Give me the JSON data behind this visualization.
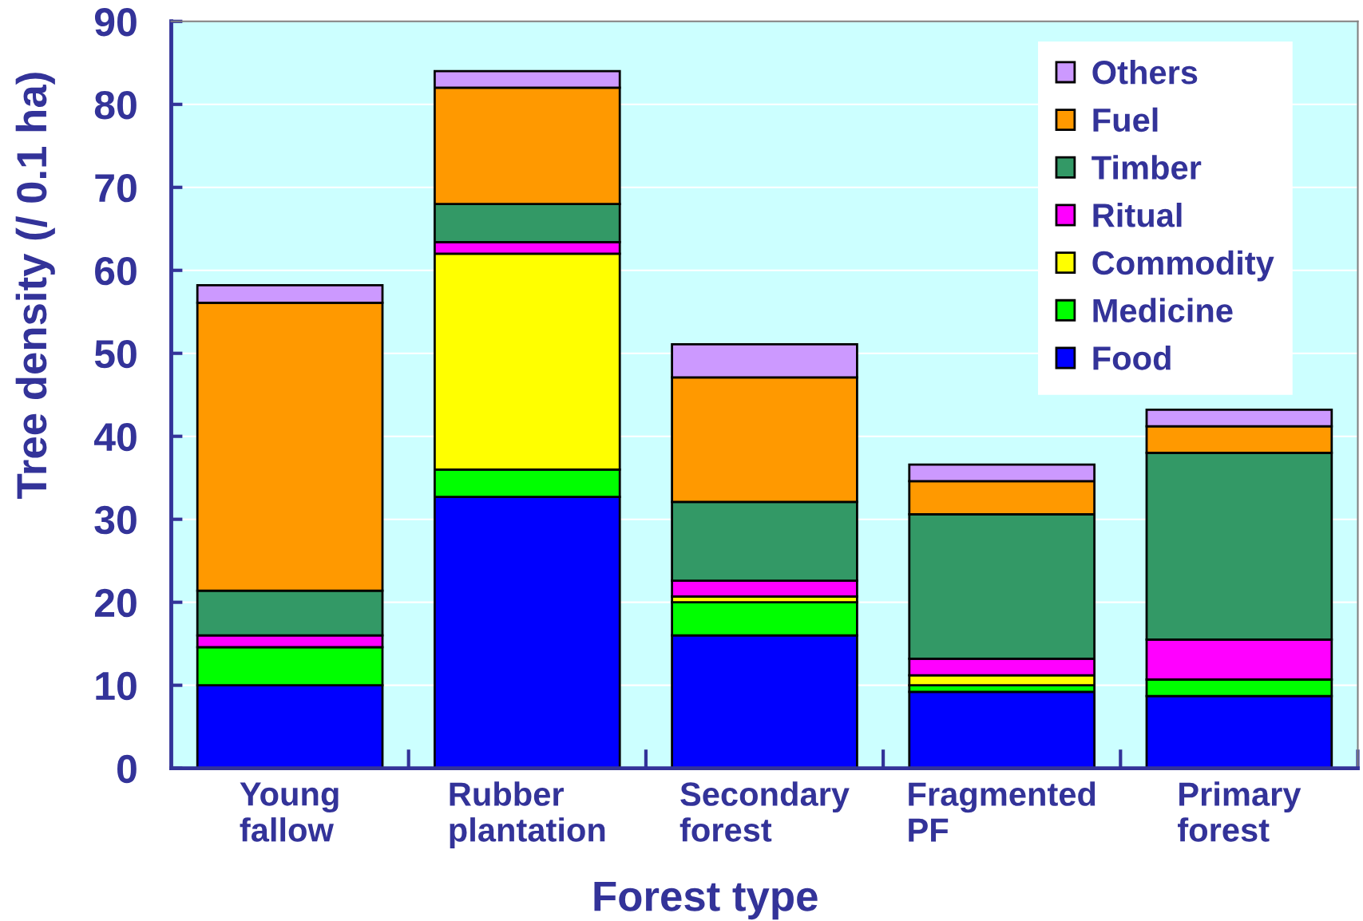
{
  "chart_data": {
    "type": "bar",
    "stacked": true,
    "xlabel": "Forest type",
    "ylabel": "Tree density (/ 0.1 ha)",
    "categories": [
      "Young fallow",
      "Rubber plantation",
      "Secondary forest",
      "Fragmented PF",
      "Primary forest"
    ],
    "series": [
      {
        "name": "Food",
        "color": "#0000ff",
        "values": [
          10.0,
          32.7,
          16.0,
          9.2,
          8.7
        ]
      },
      {
        "name": "Medicine",
        "color": "#00ff00",
        "values": [
          4.6,
          3.3,
          4.0,
          0.8,
          2.0
        ]
      },
      {
        "name": "Commodity",
        "color": "#ffff00",
        "values": [
          0,
          26.0,
          0.7,
          1.2,
          0
        ]
      },
      {
        "name": "Ritual",
        "color": "#ff00ff",
        "values": [
          1.4,
          1.4,
          1.9,
          2.0,
          4.8
        ]
      },
      {
        "name": "Timber",
        "color": "#339966",
        "values": [
          5.4,
          4.6,
          9.5,
          17.4,
          22.5
        ]
      },
      {
        "name": "Fuel",
        "color": "#ff9900",
        "values": [
          34.7,
          14.0,
          15.0,
          4.0,
          3.2
        ]
      },
      {
        "name": "Others",
        "color": "#cc99ff",
        "values": [
          2.1,
          2.0,
          4.0,
          2.0,
          2.0
        ]
      }
    ],
    "ylim": [
      0,
      90
    ],
    "yticks": [
      0,
      10,
      20,
      30,
      40,
      50,
      60,
      70,
      80,
      90
    ],
    "grid": "y",
    "legend": "top right"
  }
}
